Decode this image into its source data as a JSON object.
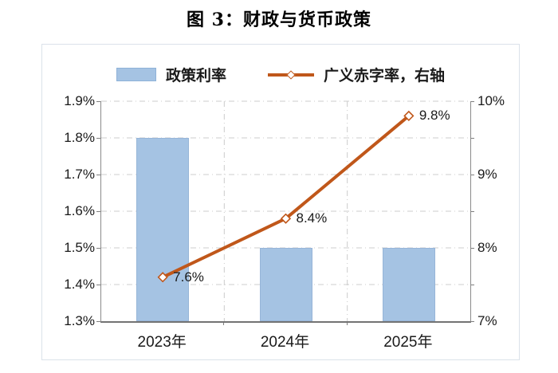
{
  "title": "图 3：财政与货币政策",
  "colors": {
    "bar_fill": "#a5c3e3",
    "bar_border": "#8fb2d8",
    "line": "#c0571a",
    "marker_fill": "#ffffff",
    "grid": "#cccccc",
    "axis": "#7f7f7f",
    "text": "#1a1a1a",
    "card_border": "#dbe2ea"
  },
  "legend": {
    "items": [
      {
        "label": "政策利率",
        "swatch": "bar-swatch"
      },
      {
        "label": "广义赤字率，右轴",
        "swatch": "line-diamond-swatch"
      }
    ],
    "position": "top"
  },
  "chart_data": {
    "type": "combo",
    "categories": [
      "2023年",
      "2024年",
      "2025年"
    ],
    "series": [
      {
        "name": "政策利率",
        "type": "bar",
        "axis": "left",
        "values": [
          1.8,
          1.5,
          1.5
        ],
        "unit": "%"
      },
      {
        "name": "广义赤字率，右轴",
        "type": "line",
        "axis": "right",
        "values": [
          7.6,
          8.4,
          9.8
        ],
        "labels": [
          "7.6%",
          "8.4%",
          "9.8%"
        ],
        "marker": "open-diamond"
      }
    ],
    "left_axis": {
      "min": 1.3,
      "max": 1.9,
      "tick_labels": [
        "1.9%",
        "1.8%",
        "1.7%",
        "1.6%",
        "1.5%",
        "1.4%",
        "1.3%"
      ]
    },
    "right_axis": {
      "min": 7,
      "max": 10,
      "tick_labels": [
        "10%",
        "9%",
        "8%",
        "7%"
      ],
      "minor_tick_step": 0.5
    },
    "grid": "dash-dot horizontal lines at left-axis ticks, dash-dot vertical lines at category boundaries",
    "legend_position": "top"
  }
}
